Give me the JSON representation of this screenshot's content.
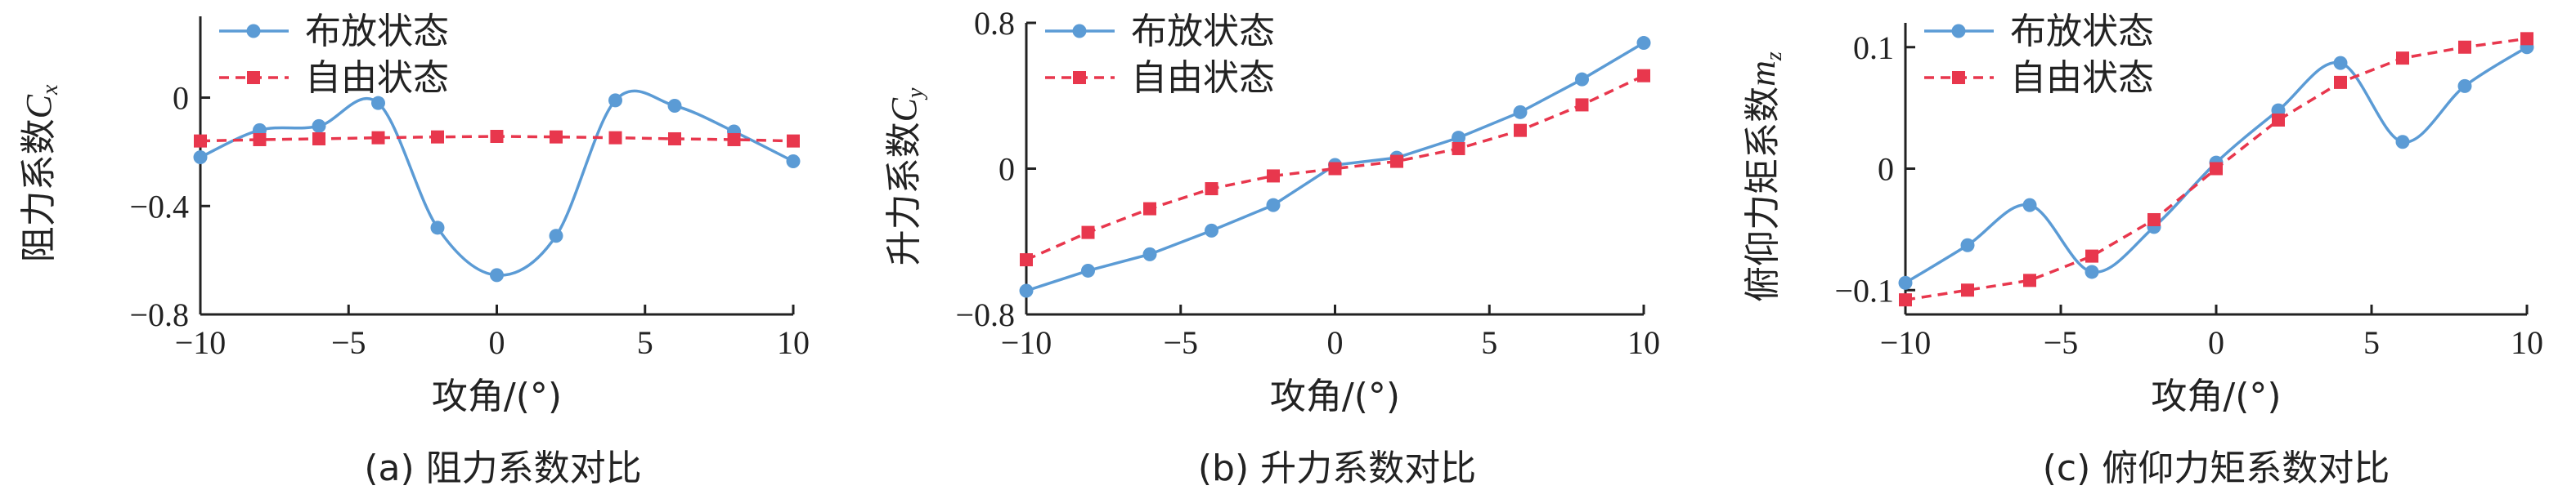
{
  "colors": {
    "deployed": "#5b9bd5",
    "free": "#e8374d",
    "axis": "#222222"
  },
  "xlabel": "攻角/(°)",
  "legend": {
    "deployed": "布放状态",
    "free": "自由状态"
  },
  "chart_data": [
    {
      "type": "line",
      "caption": "(a) 阻力系数对比",
      "ylabel_text": "阻力系数",
      "ylabel_symbol": "C",
      "ylabel_sub": "x",
      "xlim": [
        -10,
        10
      ],
      "xticks": [
        "−10",
        "−5",
        "0",
        "5",
        "10"
      ],
      "xtick_values": [
        -10,
        -5,
        0,
        5,
        10
      ],
      "ylim": [
        -0.8,
        0.3
      ],
      "yticks": [
        "0",
        "−0.4",
        "−0.8"
      ],
      "ytick_values": [
        0,
        -0.4,
        -0.8
      ],
      "legend_position": "top-left",
      "series": [
        {
          "name": "布放状态",
          "smooth": true,
          "x": [
            -10,
            -8,
            -6,
            -4,
            -2,
            0,
            2,
            4,
            6,
            8,
            10
          ],
          "y": [
            -0.22,
            -0.12,
            -0.105,
            -0.02,
            -0.48,
            -0.655,
            -0.51,
            -0.01,
            -0.03,
            -0.125,
            -0.235
          ]
        },
        {
          "name": "自由状态",
          "smooth": false,
          "x": [
            -10,
            -8,
            -6,
            -4,
            -2,
            0,
            2,
            4,
            6,
            8,
            10
          ],
          "y": [
            -0.16,
            -0.155,
            -0.152,
            -0.148,
            -0.145,
            -0.143,
            -0.145,
            -0.148,
            -0.152,
            -0.155,
            -0.16
          ]
        }
      ]
    },
    {
      "type": "line",
      "caption": "(b) 升力系数对比",
      "ylabel_text": "升力系数",
      "ylabel_symbol": "C",
      "ylabel_sub": "y",
      "xlim": [
        -10,
        10
      ],
      "xticks": [
        "−10",
        "−5",
        "0",
        "5",
        "10"
      ],
      "xtick_values": [
        -10,
        -5,
        0,
        5,
        10
      ],
      "ylim": [
        -0.8,
        0.8
      ],
      "yticks": [
        "0.8",
        "0",
        "−0.8"
      ],
      "ytick_values": [
        0.8,
        0,
        -0.8
      ],
      "legend_position": "top-left",
      "series": [
        {
          "name": "布放状态",
          "smooth": false,
          "x": [
            -10,
            -8,
            -6,
            -4,
            -2,
            0,
            2,
            4,
            6,
            8,
            10
          ],
          "y": [
            -0.67,
            -0.56,
            -0.47,
            -0.34,
            -0.2,
            0.02,
            0.06,
            0.17,
            0.31,
            0.49,
            0.69
          ]
        },
        {
          "name": "自由状态",
          "smooth": false,
          "x": [
            -10,
            -8,
            -6,
            -4,
            -2,
            0,
            2,
            4,
            6,
            8,
            10
          ],
          "y": [
            -0.5,
            -0.35,
            -0.22,
            -0.11,
            -0.04,
            0.0,
            0.04,
            0.11,
            0.21,
            0.35,
            0.51
          ]
        }
      ]
    },
    {
      "type": "line",
      "caption": "(c) 俯仰力矩系数对比",
      "ylabel_text": "俯仰力矩系数",
      "ylabel_symbol": "m",
      "ylabel_sub": "z",
      "xlim": [
        -10,
        10
      ],
      "xticks": [
        "−10",
        "−5",
        "0",
        "5",
        "10"
      ],
      "xtick_values": [
        -10,
        -5,
        0,
        5,
        10
      ],
      "ylim": [
        -0.12,
        0.12
      ],
      "yticks": [
        "0.1",
        "0",
        "−0.1"
      ],
      "ytick_values": [
        0.1,
        0,
        -0.1
      ],
      "legend_position": "top-left",
      "series": [
        {
          "name": "布放状态",
          "smooth": true,
          "x": [
            -10,
            -8,
            -6,
            -4,
            -2,
            0,
            2,
            4,
            6,
            8,
            10
          ],
          "y": [
            -0.094,
            -0.063,
            -0.03,
            -0.085,
            -0.048,
            0.005,
            0.048,
            0.087,
            0.022,
            0.068,
            0.1
          ]
        },
        {
          "name": "自由状态",
          "smooth": false,
          "x": [
            -10,
            -8,
            -6,
            -4,
            -2,
            0,
            2,
            4,
            6,
            8,
            10
          ],
          "y": [
            -0.108,
            -0.1,
            -0.092,
            -0.072,
            -0.042,
            0.0,
            0.04,
            0.071,
            0.091,
            0.1,
            0.107
          ]
        }
      ]
    }
  ]
}
